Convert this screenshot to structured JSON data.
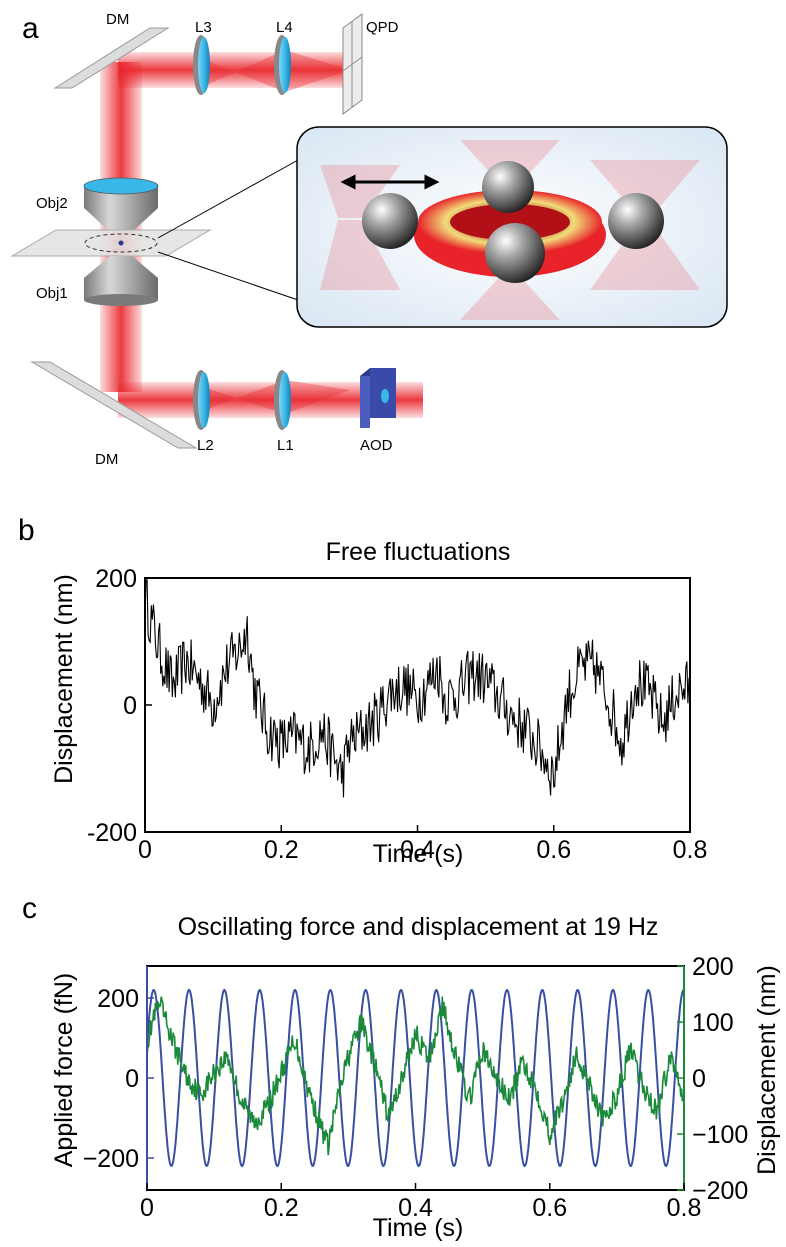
{
  "figure": {
    "panels": {
      "a": "a",
      "b": "b",
      "c": "c"
    },
    "optics_labels": {
      "dm_top": "DM",
      "l3": "L3",
      "l4": "L4",
      "qpd": "QPD",
      "obj2": "Obj2",
      "obj1": "Obj1",
      "dm_bottom": "DM",
      "l2": "L2",
      "l1": "L1",
      "aod": "AOD"
    },
    "colors": {
      "laser": "#e8242a",
      "lens": "#38b8e8",
      "aod": "#3a4aa8",
      "force_series": "#3b4fa0",
      "displacement_series": "#1a8a3a",
      "inset_bg": "#e6eff8"
    }
  },
  "chart_data": [
    {
      "type": "line",
      "title": "Free fluctuations",
      "xlabel": "Time (s)",
      "ylabel": "Displacement (nm)",
      "xlim": [
        0,
        0.8
      ],
      "ylim": [
        -200,
        200
      ],
      "xticks": [
        "0",
        "0.2",
        "0.4",
        "0.6",
        "0.8"
      ],
      "yticks": [
        "200",
        "0",
        "-200"
      ],
      "series": [
        {
          "color": "#000000",
          "x": [
            0,
            0.02,
            0.04,
            0.06,
            0.08,
            0.1,
            0.12,
            0.14,
            0.15,
            0.16,
            0.18,
            0.2,
            0.22,
            0.24,
            0.26,
            0.28,
            0.29,
            0.3,
            0.32,
            0.34,
            0.36,
            0.38,
            0.4,
            0.42,
            0.43,
            0.44,
            0.46,
            0.48,
            0.5,
            0.52,
            0.54,
            0.56,
            0.58,
            0.6,
            0.62,
            0.64,
            0.66,
            0.68,
            0.7,
            0.72,
            0.74,
            0.76,
            0.78,
            0.8
          ],
          "y": [
            170,
            90,
            30,
            70,
            40,
            0,
            60,
            90,
            120,
            30,
            -40,
            -60,
            -50,
            -70,
            -40,
            -90,
            -110,
            -60,
            -40,
            -20,
            20,
            30,
            10,
            40,
            60,
            10,
            20,
            50,
            40,
            10,
            -20,
            -40,
            -70,
            -110,
            10,
            60,
            60,
            10,
            -60,
            40,
            20,
            -30,
            20,
            30
          ]
        }
      ]
    },
    {
      "type": "line",
      "title": "Oscillating force and displacement at 19 Hz",
      "xlabel": "Time (s)",
      "ylabel": "Applied force (fN)",
      "ylabel_right": "Displacement (nm)",
      "xlim": [
        0,
        0.8
      ],
      "ylim": [
        -280,
        280
      ],
      "ylim_right": [
        -200,
        200
      ],
      "xticks": [
        "0",
        "0.2",
        "0.4",
        "0.6",
        "0.8"
      ],
      "yticks_left": [
        "200",
        "0",
        "−200"
      ],
      "yticks_right": [
        "200",
        "100",
        "0",
        "−100",
        "−200"
      ],
      "series": [
        {
          "name": "Applied force (fN)",
          "color": "#3b4fa0",
          "axis": "left",
          "function": "sinusoid",
          "frequency_hz": 19,
          "amplitude": 220,
          "phase_time_s": 0.0
        },
        {
          "name": "Displacement (nm)",
          "color": "#1a8a3a",
          "axis": "right",
          "x": [
            0,
            0.01,
            0.02,
            0.04,
            0.06,
            0.08,
            0.1,
            0.12,
            0.14,
            0.16,
            0.18,
            0.2,
            0.22,
            0.24,
            0.26,
            0.27,
            0.28,
            0.3,
            0.32,
            0.34,
            0.36,
            0.38,
            0.4,
            0.42,
            0.44,
            0.46,
            0.48,
            0.5,
            0.52,
            0.54,
            0.56,
            0.58,
            0.6,
            0.62,
            0.64,
            0.66,
            0.68,
            0.7,
            0.72,
            0.74,
            0.76,
            0.78,
            0.8
          ],
          "y": [
            60,
            110,
            130,
            60,
            0,
            -30,
            10,
            40,
            -40,
            -80,
            -50,
            10,
            70,
            -20,
            -90,
            -120,
            -60,
            40,
            100,
            20,
            -70,
            0,
            80,
            30,
            130,
            40,
            -40,
            50,
            0,
            -40,
            30,
            -20,
            -100,
            -40,
            40,
            -10,
            -80,
            -30,
            50,
            -20,
            -60,
            40,
            -30
          ]
        }
      ]
    }
  ]
}
